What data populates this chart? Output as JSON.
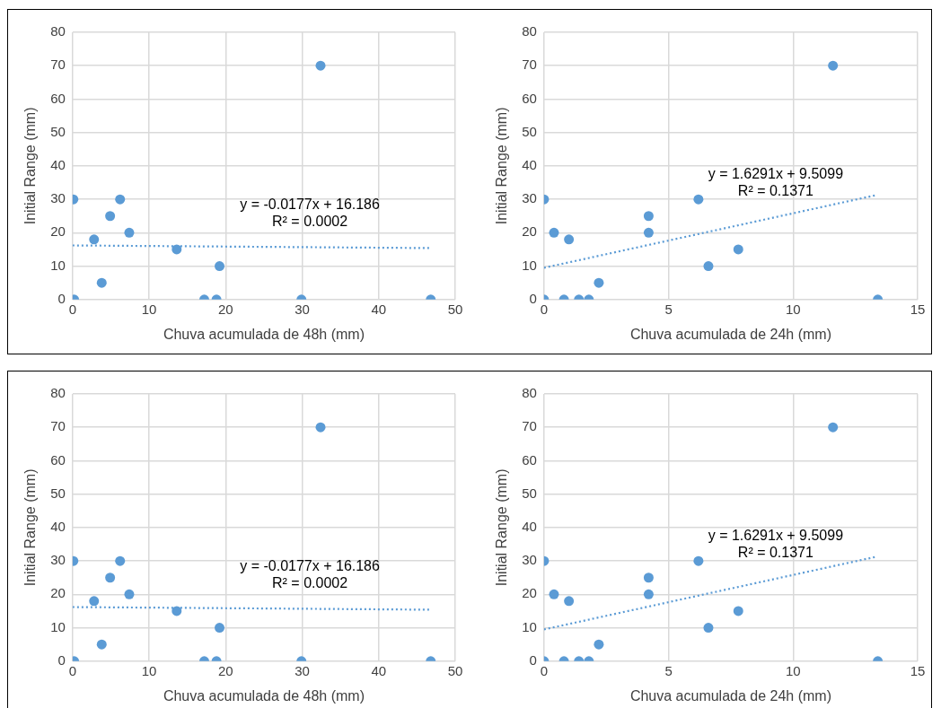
{
  "chart_data": [
    {
      "type": "scatter",
      "xlabel": "Chuva acumulada de 48h (mm)",
      "ylabel": "Initial Range (mm)",
      "xlim": [
        0,
        50
      ],
      "xticks": [
        0,
        10,
        20,
        30,
        40,
        50
      ],
      "ylim": [
        0,
        80
      ],
      "yticks": [
        0,
        10,
        20,
        30,
        40,
        50,
        60,
        70,
        80
      ],
      "grid": true,
      "legend": false,
      "marker": "circle",
      "series": [
        {
          "type": "scatter",
          "color": "#5b9bd5",
          "x": [
            0.1,
            0.2,
            2.8,
            3.8,
            4.9,
            6.2,
            7.4,
            13.6,
            17.2,
            18.8,
            19.2,
            29.9,
            32.4,
            46.8
          ],
          "values": [
            30,
            0,
            18,
            5,
            25,
            30,
            20,
            15,
            0,
            0,
            10,
            0,
            70,
            0
          ]
        },
        {
          "type": "line",
          "color": "#5b9bd5",
          "line_style": "dotted",
          "marker": "none",
          "x": [
            0,
            46.9
          ],
          "values": [
            16.2,
            15.4
          ]
        }
      ],
      "annotations": [
        "y = -0.0177x + 16.186",
        "R² = 0.0002"
      ]
    },
    {
      "type": "scatter",
      "xlabel": "Chuva acumulada de 24h (mm)",
      "ylabel": "Initial Range (mm)",
      "xlim": [
        0,
        15
      ],
      "xticks": [
        0,
        5,
        10,
        15
      ],
      "ylim": [
        0,
        80
      ],
      "yticks": [
        0,
        10,
        20,
        30,
        40,
        50,
        60,
        70,
        80
      ],
      "grid": true,
      "legend": false,
      "marker": "circle",
      "series": [
        {
          "type": "scatter",
          "color": "#5b9bd5",
          "x": [
            0,
            0,
            0.4,
            0.8,
            1.0,
            1.4,
            1.8,
            2.2,
            4.2,
            4.2,
            6.2,
            6.6,
            7.8,
            11.6,
            13.4
          ],
          "values": [
            30,
            0,
            20,
            0,
            18,
            0,
            0,
            5,
            25,
            20,
            30,
            10,
            15,
            70,
            0
          ]
        },
        {
          "type": "line",
          "color": "#5b9bd5",
          "line_style": "dotted",
          "marker": "none",
          "x": [
            0,
            13.3
          ],
          "values": [
            9.5,
            31.2
          ]
        }
      ],
      "annotations": [
        "y = 1.6291x + 9.5099",
        "R² = 0.1371"
      ]
    },
    {
      "type": "scatter",
      "xlabel": "Chuva acumulada de 48h (mm)",
      "ylabel": "Initial Range (mm)",
      "xlim": [
        0,
        50
      ],
      "xticks": [
        0,
        10,
        20,
        30,
        40,
        50
      ],
      "ylim": [
        0,
        80
      ],
      "yticks": [
        0,
        10,
        20,
        30,
        40,
        50,
        60,
        70,
        80
      ],
      "grid": true,
      "legend": false,
      "marker": "circle",
      "series": [
        {
          "type": "scatter",
          "color": "#5b9bd5",
          "x": [
            0.1,
            0.2,
            2.8,
            3.8,
            4.9,
            6.2,
            7.4,
            13.6,
            17.2,
            18.8,
            19.2,
            29.9,
            32.4,
            46.8
          ],
          "values": [
            30,
            0,
            18,
            5,
            25,
            30,
            20,
            15,
            0,
            0,
            10,
            0,
            70,
            0
          ]
        },
        {
          "type": "line",
          "color": "#5b9bd5",
          "line_style": "dotted",
          "marker": "none",
          "x": [
            0,
            46.9
          ],
          "values": [
            16.2,
            15.4
          ]
        }
      ],
      "annotations": [
        "y = -0.0177x + 16.186",
        "R² = 0.0002"
      ]
    },
    {
      "type": "scatter",
      "xlabel": "Chuva acumulada de 24h (mm)",
      "ylabel": "Initial Range (mm)",
      "xlim": [
        0,
        15
      ],
      "xticks": [
        0,
        5,
        10,
        15
      ],
      "ylim": [
        0,
        80
      ],
      "yticks": [
        0,
        10,
        20,
        30,
        40,
        50,
        60,
        70,
        80
      ],
      "grid": true,
      "legend": false,
      "marker": "circle",
      "series": [
        {
          "type": "scatter",
          "color": "#5b9bd5",
          "x": [
            0,
            0,
            0.4,
            0.8,
            1.0,
            1.4,
            1.8,
            2.2,
            4.2,
            4.2,
            6.2,
            6.6,
            7.8,
            11.6,
            13.4
          ],
          "values": [
            30,
            0,
            20,
            0,
            18,
            0,
            0,
            5,
            25,
            20,
            30,
            10,
            15,
            70,
            0
          ]
        },
        {
          "type": "line",
          "color": "#5b9bd5",
          "line_style": "dotted",
          "marker": "none",
          "x": [
            0,
            13.3
          ],
          "values": [
            9.5,
            31.2
          ]
        }
      ],
      "annotations": [
        "y = 1.6291x + 9.5099",
        "R² = 0.1371"
      ]
    }
  ]
}
